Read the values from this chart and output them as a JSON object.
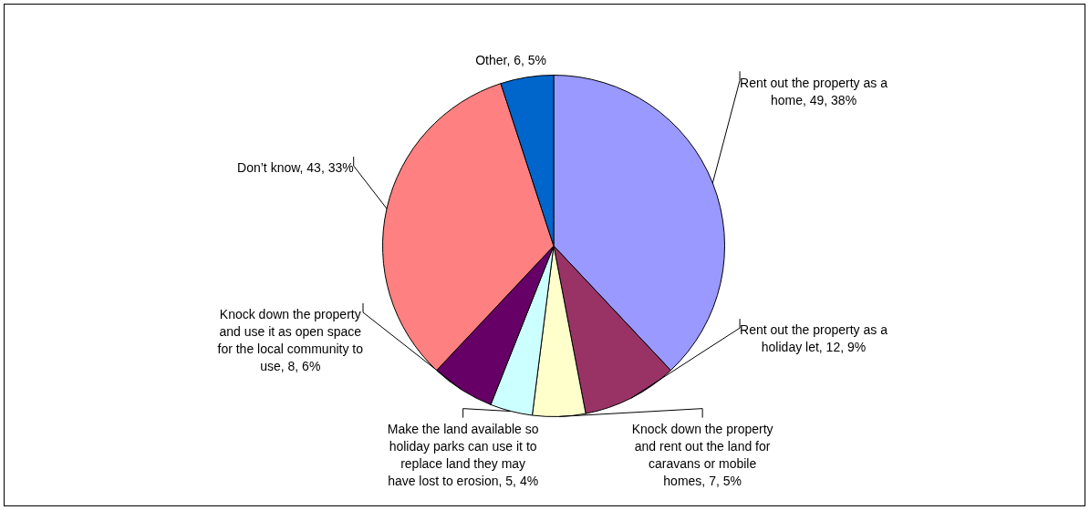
{
  "chart_data": {
    "type": "pie",
    "categories": [
      "Rent out the property as a home",
      "Rent out the property as a holiday let",
      "Knock down the property and rent out the land for caravans or mobile homes",
      "Make the land available so holiday parks can use it to replace land they may have lost to erosion",
      "Knock down the property and use it as open space for the local community to use",
      "Don’t know",
      "Other"
    ],
    "values": [
      38,
      9,
      5,
      4,
      6,
      33,
      5
    ],
    "value_labels": [
      "49, 38%",
      "12, 9%",
      "7, 5%",
      "5, 4%",
      "8, 6%",
      "43, 33%",
      "6, 5%"
    ],
    "colors": [
      "#9999ff",
      "#993366",
      "#ffffcc",
      "#ccffff",
      "#660066",
      "#ff8080",
      "#0066cc"
    ],
    "legend": false
  }
}
